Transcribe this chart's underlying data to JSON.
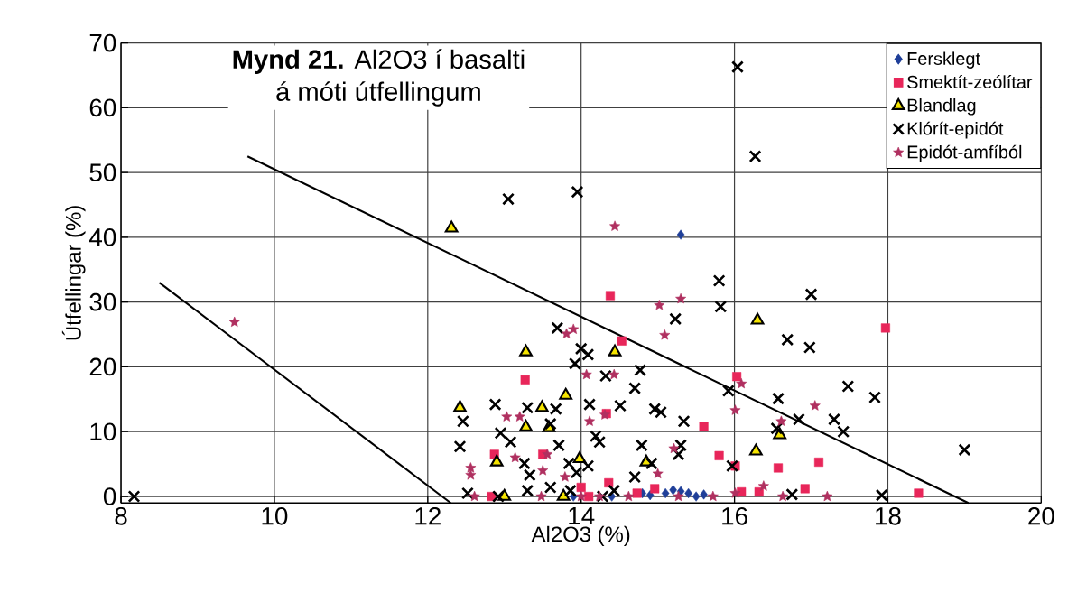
{
  "chart_data": {
    "type": "scatter",
    "title": "**Mynd 21.** Al2O3 í basalti",
    "subtitle": "á móti útfellingum",
    "xlabel": "Al2O3 (%)",
    "ylabel": "Útfellingar (%)",
    "xlim": [
      8,
      20
    ],
    "ylim": [
      -1,
      70
    ],
    "xticks": [
      8,
      10,
      12,
      14,
      16,
      18,
      20
    ],
    "yticks": [
      0,
      10,
      20,
      30,
      40,
      50,
      60,
      70
    ],
    "grid": true,
    "legend": "top right",
    "series": [
      {
        "name": "Fersklegt",
        "color": "#1f3f99",
        "marker": "diamond",
        "x": [
          15.3,
          13.9,
          14.4,
          14.6,
          14.8,
          14.9,
          15.0,
          15.1,
          15.2,
          15.3,
          15.4,
          15.5,
          15.6
        ],
        "values": [
          40.4,
          0,
          0,
          null,
          0.5,
          0.2,
          null,
          0.5,
          1,
          0.8,
          0.5,
          0,
          0.3
        ]
      },
      {
        "name": "Smektít-zeólítar",
        "color": "#e8265a",
        "marker": "square",
        "x": [
          12.83,
          12.87,
          13.27,
          13.5,
          14.0,
          14.1,
          14.33,
          14.36,
          14.38,
          14.53,
          14.73,
          14.96,
          15.6,
          15.8,
          16.01,
          16.03,
          16.09,
          16.32,
          16.57,
          16.92,
          17.1,
          17.97,
          18.4
        ],
        "values": [
          0,
          6.5,
          18,
          6.5,
          1.4,
          0,
          12.8,
          2.1,
          31,
          24,
          0.5,
          1.2,
          10.8,
          6.3,
          4.7,
          18.5,
          0.7,
          0.7,
          4.4,
          1.2,
          5.3,
          26,
          0.5
        ]
      },
      {
        "name": "Blandlag",
        "color": "#f5e400",
        "marker": "triangle",
        "x": [
          12.31,
          13.28,
          14.44,
          13.8,
          12.42,
          13.49,
          13.28,
          13.58,
          12.9,
          13.98,
          14.85,
          13.0,
          13.77,
          16.3,
          16.28,
          16.59
        ],
        "values": [
          41.4,
          22.3,
          22.3,
          15.6,
          13.7,
          13.7,
          10.7,
          10.6,
          5.3,
          5.8,
          5.3,
          0,
          0,
          27.2,
          7.0,
          9.5
        ]
      },
      {
        "name": "Klórít-epidót",
        "color": "#000000",
        "marker": "cross",
        "x": [
          8.17,
          13.05,
          13.95,
          16.04,
          16.27,
          15.8,
          15.82,
          17.0,
          16.69,
          16.98,
          17.48,
          17.83,
          15.92,
          16.57,
          16.84,
          17.3,
          17.42,
          16.55,
          15.97,
          19.0,
          17.92,
          16.75,
          13.69,
          15.23,
          14.0,
          14.09,
          13.92,
          14.32,
          14.77,
          14.7,
          12.88,
          13.3,
          13.67,
          14.11,
          14.51,
          14.96,
          15.04,
          15.34,
          12.46,
          12.95,
          13.08,
          14.19,
          14.24,
          13.6,
          12.42,
          13.71,
          14.79,
          15.27,
          15.3,
          13.26,
          13.84,
          14.09,
          13.33,
          13.94,
          14.7,
          14.92,
          12.52,
          12.92,
          13.3,
          13.6,
          13.86,
          14.43,
          14.28
        ],
        "values": [
          0,
          45.9,
          47,
          66.3,
          52.5,
          33.3,
          29.3,
          31.2,
          24.2,
          23.0,
          17.0,
          15.3,
          16.3,
          15.1,
          11.9,
          11.9,
          10.0,
          10.5,
          4.7,
          7.2,
          0.2,
          0.3,
          26.0,
          27.4,
          22.8,
          21.9,
          20.5,
          18.6,
          19.5,
          16.7,
          14.2,
          13.7,
          13.5,
          14.2,
          14.0,
          13.5,
          13.0,
          11.6,
          11.6,
          9.8,
          8.4,
          9.3,
          8.4,
          11.2,
          7.7,
          7.9,
          7.9,
          6.5,
          7.9,
          5.1,
          5.1,
          4.7,
          3.3,
          3.7,
          3.0,
          5.1,
          0.5,
          0,
          0.9,
          1.4,
          0.9,
          0.9,
          0
        ]
      },
      {
        "name": "Epidót-amfíból",
        "color": "#b03060",
        "marker": "star",
        "x": [
          9.48,
          14.44,
          15.02,
          15.3,
          15.09,
          13.81,
          13.9,
          14.07,
          14.43,
          13.03,
          13.2,
          14.31,
          14.11,
          13.14,
          13.56,
          12.56,
          12.56,
          13.5,
          13.79,
          15.21,
          15.0,
          12.61,
          13.48,
          14.0,
          14.24,
          15.27,
          15.72,
          14.62,
          16.09,
          16.01,
          17.05,
          16.61,
          16.38,
          16.01,
          16.63,
          17.21
        ],
        "values": [
          26.9,
          41.7,
          29.5,
          30.5,
          24.9,
          25.1,
          25.8,
          18.8,
          18.8,
          12.3,
          12.3,
          12.6,
          11.6,
          6.0,
          6.5,
          4.4,
          3.3,
          4.0,
          3.0,
          7.4,
          3.5,
          0,
          0,
          0,
          0,
          0,
          0,
          0,
          17.4,
          13.3,
          14.0,
          11.6,
          1.6,
          0.5,
          0,
          0
        ]
      },
      {
        "type": "line",
        "color": "#000000",
        "marker": "none",
        "x": [
          8.5,
          12.3
        ],
        "values": [
          33,
          -1
        ]
      },
      {
        "type": "line",
        "color": "#000000",
        "marker": "none",
        "x": [
          9.65,
          19.05
        ],
        "values": [
          52.5,
          -1
        ]
      }
    ]
  }
}
